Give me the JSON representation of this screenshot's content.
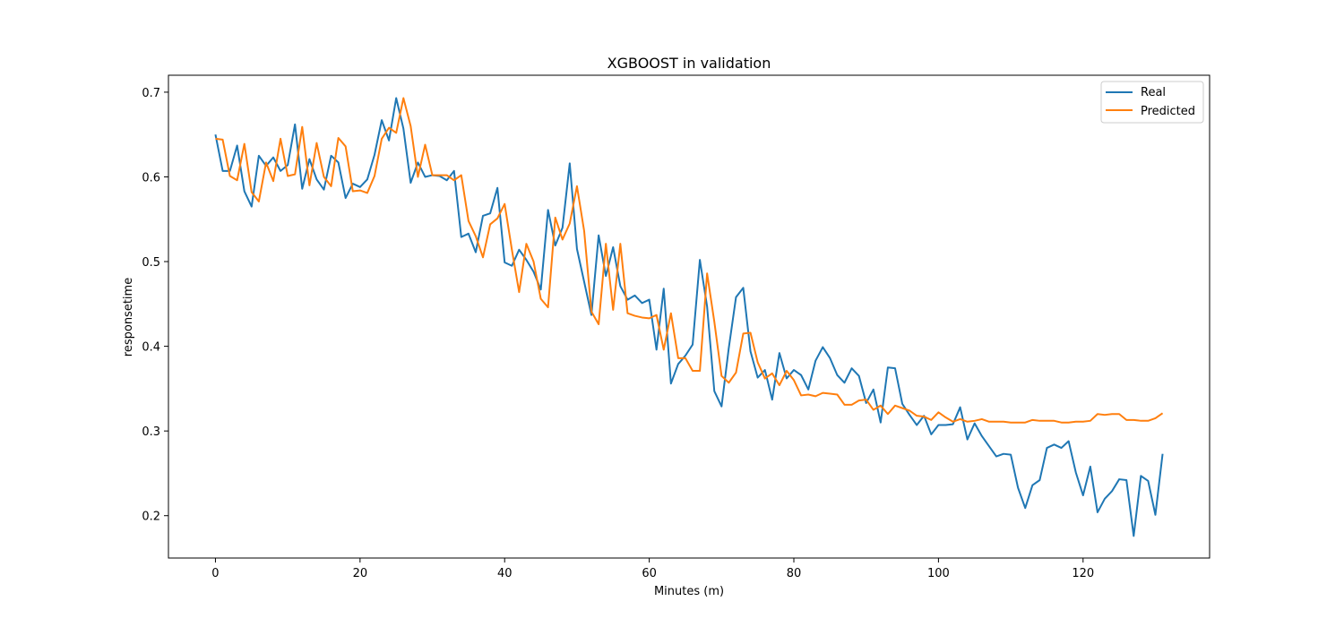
{
  "chart_data": {
    "type": "line",
    "title": "XGBOOST in validation",
    "xlabel": "Minutes (m)",
    "ylabel": "responsetime",
    "xlim": [
      -6.5,
      137.5
    ],
    "ylim": [
      0.15,
      0.72
    ],
    "xticks": [
      0,
      20,
      40,
      60,
      80,
      100,
      120
    ],
    "yticks": [
      0.2,
      0.3,
      0.4,
      0.5,
      0.6,
      0.7
    ],
    "grid": false,
    "legend_position": "top-right",
    "series": [
      {
        "name": "Real",
        "color": "#1f77b4",
        "values": [
          0.65,
          0.607,
          0.607,
          0.637,
          0.583,
          0.565,
          0.625,
          0.613,
          0.623,
          0.607,
          0.614,
          0.662,
          0.586,
          0.621,
          0.597,
          0.585,
          0.625,
          0.617,
          0.575,
          0.592,
          0.588,
          0.597,
          0.626,
          0.667,
          0.643,
          0.693,
          0.657,
          0.593,
          0.617,
          0.6,
          0.602,
          0.601,
          0.596,
          0.607,
          0.529,
          0.533,
          0.511,
          0.554,
          0.557,
          0.587,
          0.499,
          0.495,
          0.514,
          0.502,
          0.488,
          0.467,
          0.561,
          0.519,
          0.54,
          0.616,
          0.515,
          0.476,
          0.437,
          0.531,
          0.483,
          0.517,
          0.471,
          0.455,
          0.46,
          0.451,
          0.455,
          0.396,
          0.468,
          0.356,
          0.379,
          0.389,
          0.402,
          0.502,
          0.447,
          0.347,
          0.329,
          0.398,
          0.458,
          0.469,
          0.394,
          0.363,
          0.372,
          0.337,
          0.392,
          0.362,
          0.372,
          0.366,
          0.349,
          0.383,
          0.399,
          0.386,
          0.366,
          0.357,
          0.374,
          0.365,
          0.333,
          0.349,
          0.31,
          0.375,
          0.374,
          0.332,
          0.319,
          0.307,
          0.318,
          0.296,
          0.307,
          0.307,
          0.308,
          0.328,
          0.29,
          0.309,
          0.294,
          0.282,
          0.27,
          0.273,
          0.272,
          0.233,
          0.209,
          0.236,
          0.242,
          0.28,
          0.284,
          0.28,
          0.288,
          0.251,
          0.224,
          0.258,
          0.204,
          0.22,
          0.229,
          0.243,
          0.242,
          0.176,
          0.247,
          0.241,
          0.201,
          0.273
        ]
      },
      {
        "name": "Predicted",
        "color": "#ff7f0e",
        "values": [
          0.645,
          0.644,
          0.601,
          0.596,
          0.639,
          0.582,
          0.571,
          0.617,
          0.595,
          0.645,
          0.601,
          0.603,
          0.659,
          0.59,
          0.64,
          0.6,
          0.589,
          0.646,
          0.636,
          0.583,
          0.584,
          0.581,
          0.601,
          0.645,
          0.658,
          0.652,
          0.693,
          0.66,
          0.6,
          0.638,
          0.602,
          0.602,
          0.602,
          0.596,
          0.602,
          0.548,
          0.53,
          0.505,
          0.544,
          0.551,
          0.568,
          0.514,
          0.464,
          0.521,
          0.5,
          0.456,
          0.446,
          0.552,
          0.526,
          0.545,
          0.589,
          0.536,
          0.441,
          0.426,
          0.521,
          0.443,
          0.521,
          0.439,
          0.436,
          0.434,
          0.433,
          0.437,
          0.396,
          0.439,
          0.386,
          0.386,
          0.371,
          0.371,
          0.486,
          0.429,
          0.365,
          0.357,
          0.369,
          0.415,
          0.416,
          0.381,
          0.362,
          0.368,
          0.354,
          0.371,
          0.36,
          0.342,
          0.343,
          0.341,
          0.345,
          0.344,
          0.343,
          0.331,
          0.331,
          0.336,
          0.337,
          0.325,
          0.33,
          0.32,
          0.33,
          0.327,
          0.324,
          0.318,
          0.317,
          0.313,
          0.322,
          0.316,
          0.311,
          0.314,
          0.311,
          0.312,
          0.314,
          0.311,
          0.311,
          0.311,
          0.31,
          0.31,
          0.31,
          0.313,
          0.312,
          0.312,
          0.312,
          0.31,
          0.31,
          0.311,
          0.311,
          0.312,
          0.32,
          0.319,
          0.32,
          0.32,
          0.313,
          0.313,
          0.312,
          0.312,
          0.315,
          0.321
        ]
      }
    ]
  }
}
